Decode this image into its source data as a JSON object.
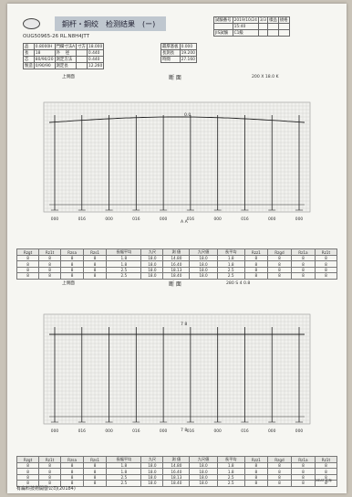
{
  "header": {
    "title": "銅杆・銅绞　检测结果　(ー)",
    "serial": "OUG50965-26 RL.N8H4JTT",
    "test_no_label": "試験番号",
    "date": "2019/10/24",
    "time": "15:40",
    "page_label": "3/3",
    "sample_label": "樣品",
    "spec_label": "規格",
    "grade": "JIS試験",
    "grade_value": "C1級",
    "left_rows": [
      [
        "品",
        "0.8000H",
        "門欄寸法A",
        "寸方",
        "18.000"
      ],
      [
        "長",
        "18",
        "外　 径",
        "",
        "0.440"
      ],
      [
        "芯",
        "80/90/20",
        "測定方法",
        "",
        "0.440"
      ],
      [
        "製造",
        "0/90/90",
        "測定長",
        "",
        "12.260"
      ]
    ],
    "right_rows": [
      [
        "最厚基板",
        "0.000"
      ],
      [
        "長測長",
        "19.200"
      ],
      [
        "時間",
        "27.160"
      ]
    ]
  },
  "section1": {
    "left_label": "上側面",
    "center_label": "断 面",
    "right_label": "200 X 18.0 K",
    "peak_label": "0.0",
    "mid_label": "A A",
    "axis_ticks": [
      "000",
      "016",
      "000",
      "016",
      "000",
      "016",
      "000",
      "016",
      "000",
      "000"
    ]
  },
  "section2": {
    "left_label": "上側面",
    "center_label": "断 面",
    "right_label": "280 S 4 0.8",
    "peak_label": "7 8",
    "mid_label": "7 8",
    "axis_ticks": [
      "000",
      "016",
      "000",
      "016",
      "000",
      "016",
      "000",
      "016",
      "000",
      "000"
    ]
  },
  "table1": {
    "headers": [
      "Rzgt",
      "Rz1t",
      "Rzsa",
      "Rzs1",
      "長幅平均",
      "九尺",
      "測 値",
      "九尺値",
      "長平均",
      "Rzz1",
      "Rzgd",
      "Rz1a",
      "Rz1t"
    ],
    "rows": [
      [
        "8",
        "8",
        "8",
        "8",
        "1.8",
        "18.0",
        "14.80",
        "18.0",
        "1.8",
        "8",
        "8",
        "8",
        "8"
      ],
      [
        "8",
        "8",
        "8",
        "8",
        "1.8",
        "18.0",
        "16.40",
        "18.0",
        "1.8",
        "8",
        "8",
        "8",
        "8"
      ],
      [
        "8",
        "8",
        "8",
        "8",
        "2.5",
        "18.0",
        "18.13",
        "18.0",
        "2.5",
        "8",
        "8",
        "8",
        "8"
      ],
      [
        "8",
        "8",
        "8",
        "8",
        "2.5",
        "18.0",
        "18.40",
        "18.0",
        "2.5",
        "8",
        "8",
        "8",
        "8"
      ]
    ]
  },
  "table2": {
    "headers": [
      "Rzgt",
      "Rz1t",
      "Rzsa",
      "Rzs1",
      "長幅平均",
      "九尺",
      "測 値",
      "九尺値",
      "長平均",
      "Rzz1",
      "Rzgd",
      "Rz1a",
      "Rz1t"
    ],
    "rows": [
      [
        "8",
        "8",
        "8",
        "8",
        "1.8",
        "18.0",
        "14.80",
        "18.0",
        "1.8",
        "8",
        "8",
        "8",
        "8"
      ],
      [
        "8",
        "8",
        "8",
        "8",
        "1.8",
        "18.0",
        "16.40",
        "18.0",
        "1.8",
        "8",
        "8",
        "8",
        "8"
      ],
      [
        "8",
        "8",
        "8",
        "8",
        "2.5",
        "18.0",
        "18.13",
        "18.0",
        "2.5",
        "8",
        "8",
        "8",
        "8"
      ],
      [
        "8",
        "8",
        "8",
        "8",
        "2.5",
        "18.0",
        "18.40",
        "18.0",
        "2.5",
        "8",
        "8",
        "8",
        "8"
      ]
    ]
  },
  "signature": "MEAT 北海",
  "footer": "有扁料技術開發公司(20184)"
}
